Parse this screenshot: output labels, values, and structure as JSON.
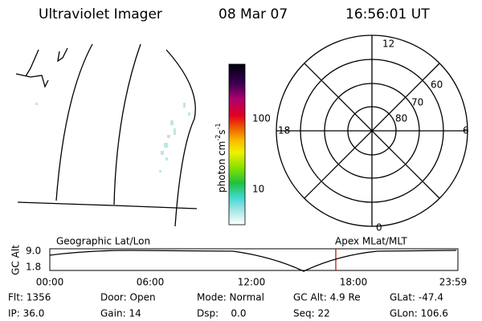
{
  "header": {
    "title": "Ultraviolet Imager",
    "date": "08 Mar 07",
    "time": "16:56:01 UT"
  },
  "colorbar": {
    "unit": [
      "photon cm",
      "-2",
      "s",
      "-1"
    ],
    "tick_labels": [
      "100",
      "10"
    ]
  },
  "polar": {
    "mlt_labels": [
      "12",
      "18",
      "6",
      "0"
    ],
    "lat_labels": [
      "60",
      "70",
      "80"
    ]
  },
  "altitude_plot": {
    "left_label": "Geographic Lat/Lon",
    "right_label": "Apex MLat/MLT",
    "y_label": "GC Alt",
    "y_tick_labels": [
      "9.0",
      "1.8"
    ],
    "x_tick_labels": [
      "00:00",
      "06:00",
      "12:00",
      "18:00",
      "23:59"
    ]
  },
  "status": {
    "rows": [
      [
        "Flt: 1356",
        "Door: Open",
        "Mode: Normal",
        "GC Alt: 4.9 Re",
        "GLat: -47.4"
      ],
      [
        "IP: 36.0",
        "Gain: 14",
        "Dsp:    0.0",
        "Seq: 22",
        "GLon: 106.6"
      ]
    ]
  }
}
